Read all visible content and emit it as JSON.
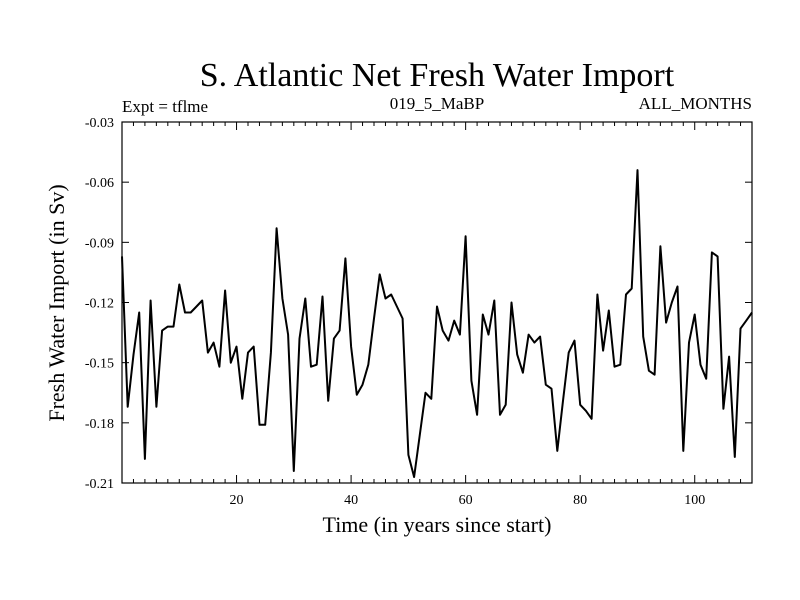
{
  "chart_data": {
    "type": "line",
    "title": "S. Atlantic Net Fresh Water Import",
    "subtitle_left": "Expt = tflme",
    "subtitle_center": "019_5_MaBP",
    "subtitle_right": "ALL_MONTHS",
    "xlabel": "Time (in years since start)",
    "ylabel": "Fresh Water Import (in Sv)",
    "xlim": [
      0,
      110
    ],
    "ylim": [
      -0.21,
      -0.03
    ],
    "xticks": [
      20,
      40,
      60,
      80,
      100
    ],
    "xtick_labels": [
      "20",
      "40",
      "60",
      "80",
      "100"
    ],
    "yticks": [
      -0.03,
      -0.06,
      -0.09,
      -0.12,
      -0.15,
      -0.18,
      -0.21
    ],
    "ytick_labels": [
      "-0.03",
      "-0.06",
      "-0.09",
      "-0.12",
      "-0.15",
      "-0.18",
      "-0.21"
    ],
    "series": [
      {
        "name": "Fresh Water Import",
        "x": [
          0,
          1,
          2,
          3,
          4,
          5,
          6,
          7,
          8,
          9,
          10,
          11,
          12,
          13,
          14,
          15,
          16,
          17,
          18,
          19,
          20,
          21,
          22,
          23,
          24,
          25,
          26,
          27,
          28,
          29,
          30,
          31,
          32,
          33,
          34,
          35,
          36,
          37,
          38,
          39,
          40,
          41,
          42,
          43,
          44,
          45,
          46,
          47,
          48,
          49,
          50,
          51,
          52,
          53,
          54,
          55,
          56,
          57,
          58,
          59,
          60,
          61,
          62,
          63,
          64,
          65,
          66,
          67,
          68,
          69,
          70,
          71,
          72,
          73,
          74,
          75,
          76,
          77,
          78,
          79,
          80,
          81,
          82,
          83,
          84,
          85,
          86,
          87,
          88,
          89,
          90,
          91,
          92,
          93,
          94,
          95,
          96,
          97,
          98,
          99,
          100,
          101,
          102,
          103,
          104,
          105,
          106,
          107,
          108,
          109,
          110
        ],
        "values": [
          -0.097,
          -0.172,
          -0.146,
          -0.125,
          -0.198,
          -0.119,
          -0.172,
          -0.134,
          -0.132,
          -0.132,
          -0.111,
          -0.125,
          -0.125,
          -0.122,
          -0.119,
          -0.145,
          -0.14,
          -0.152,
          -0.114,
          -0.15,
          -0.142,
          -0.168,
          -0.145,
          -0.142,
          -0.181,
          -0.181,
          -0.145,
          -0.083,
          -0.118,
          -0.136,
          -0.204,
          -0.138,
          -0.118,
          -0.152,
          -0.151,
          -0.117,
          -0.169,
          -0.138,
          -0.134,
          -0.098,
          -0.142,
          -0.166,
          -0.161,
          -0.151,
          -0.128,
          -0.106,
          -0.118,
          -0.116,
          -0.122,
          -0.128,
          -0.196,
          -0.207,
          -0.186,
          -0.165,
          -0.168,
          -0.122,
          -0.134,
          -0.139,
          -0.129,
          -0.136,
          -0.087,
          -0.159,
          -0.176,
          -0.126,
          -0.136,
          -0.119,
          -0.176,
          -0.171,
          -0.12,
          -0.146,
          -0.155,
          -0.136,
          -0.14,
          -0.137,
          -0.161,
          -0.163,
          -0.194,
          -0.169,
          -0.145,
          -0.139,
          -0.171,
          -0.174,
          -0.178,
          -0.116,
          -0.144,
          -0.124,
          -0.152,
          -0.151,
          -0.116,
          -0.113,
          -0.054,
          -0.137,
          -0.154,
          -0.156,
          -0.092,
          -0.13,
          -0.12,
          -0.112,
          -0.194,
          -0.14,
          -0.126,
          -0.151,
          -0.158,
          -0.095,
          -0.097,
          -0.173,
          -0.147,
          -0.197,
          -0.133,
          -0.129,
          -0.125
        ]
      }
    ]
  }
}
